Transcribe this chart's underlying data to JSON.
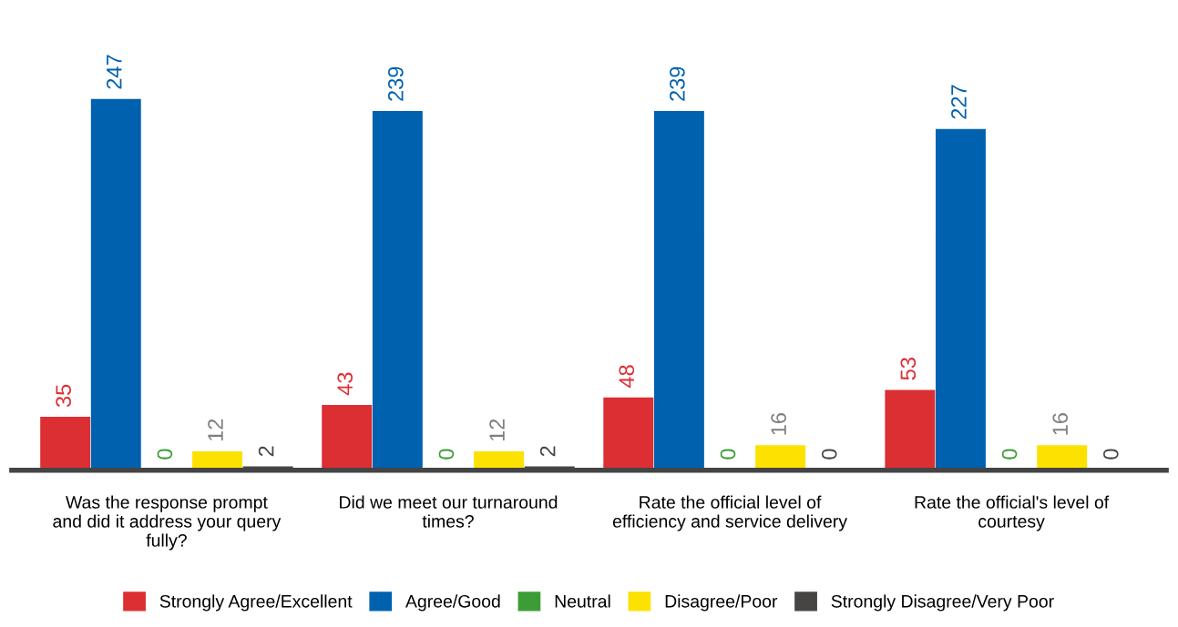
{
  "chart_data": {
    "type": "bar",
    "categories": [
      "Was the response prompt\nand did it address your query\nfully?",
      "Did we meet our turnaround\ntimes?",
      "Rate the official level of\nefficiency and service delivery",
      "Rate the official's level of\ncourtesy"
    ],
    "series": [
      {
        "name": "Strongly Agree/Excellent",
        "color": "#dc2f33",
        "values": [
          35,
          43,
          48,
          53
        ]
      },
      {
        "name": "Agree/Good",
        "color": "#0061ae",
        "values": [
          247,
          239,
          239,
          227
        ]
      },
      {
        "name": "Neutral",
        "color": "#3c9c35",
        "values": [
          0,
          0,
          0,
          0
        ]
      },
      {
        "name": "Disagree/Poor",
        "color": "#fde100",
        "values": [
          12,
          12,
          16,
          16
        ]
      },
      {
        "name": "Strongly Disagree/Very Poor",
        "color": "#474444",
        "values": [
          2,
          2,
          0,
          0
        ]
      }
    ],
    "data_labels": true,
    "legend": "bottom",
    "grid": false
  }
}
